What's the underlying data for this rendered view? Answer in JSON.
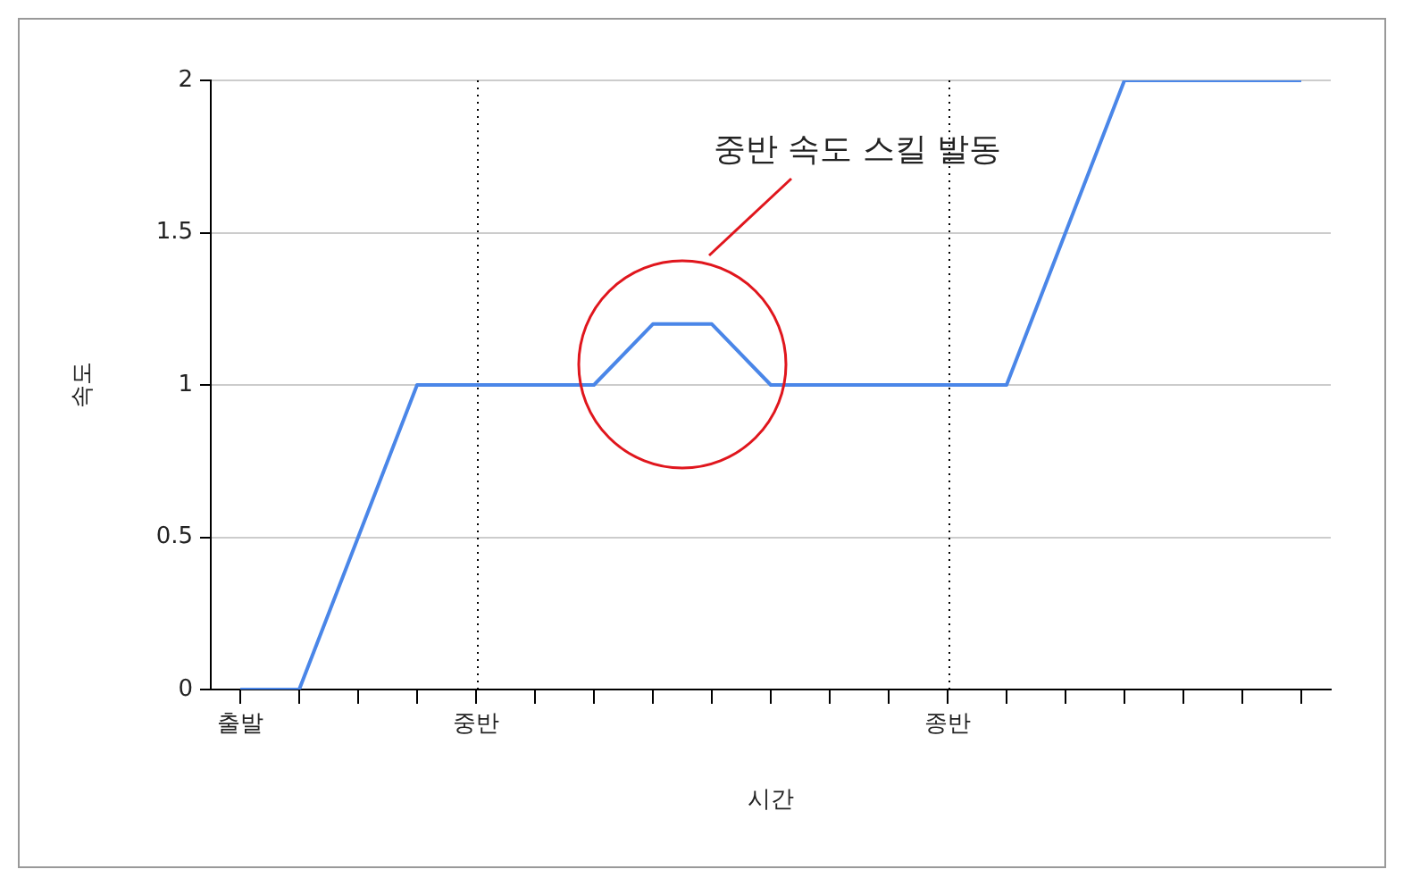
{
  "chart_data": {
    "type": "line",
    "xlabel": "시간",
    "ylabel": "속도",
    "categories": [
      "출발",
      null,
      null,
      null,
      "중반",
      null,
      null,
      null,
      null,
      null,
      null,
      null,
      "종반",
      null,
      null,
      null,
      null,
      null,
      null
    ],
    "series": [
      {
        "color": "#4a86e8",
        "values": [
          0,
          0,
          0.5,
          1,
          1,
          1,
          1,
          1.2,
          1.2,
          1,
          1,
          1,
          1,
          1,
          1.5,
          2,
          2,
          2,
          2
        ]
      }
    ],
    "ylim": [
      0,
      2
    ],
    "yticks": [
      0,
      0.5,
      1,
      1.5,
      2
    ],
    "grid": "y",
    "legend": false,
    "marker": "none",
    "line_style": "solid",
    "ref_lines": [
      {
        "axis": "x",
        "value": "중반",
        "color": "#000000",
        "line_style": "dotted"
      },
      {
        "axis": "x",
        "value": "종반",
        "color": "#000000",
        "line_style": "dotted"
      }
    ],
    "annotations": [
      "중반 속도 스킬 발동"
    ]
  }
}
